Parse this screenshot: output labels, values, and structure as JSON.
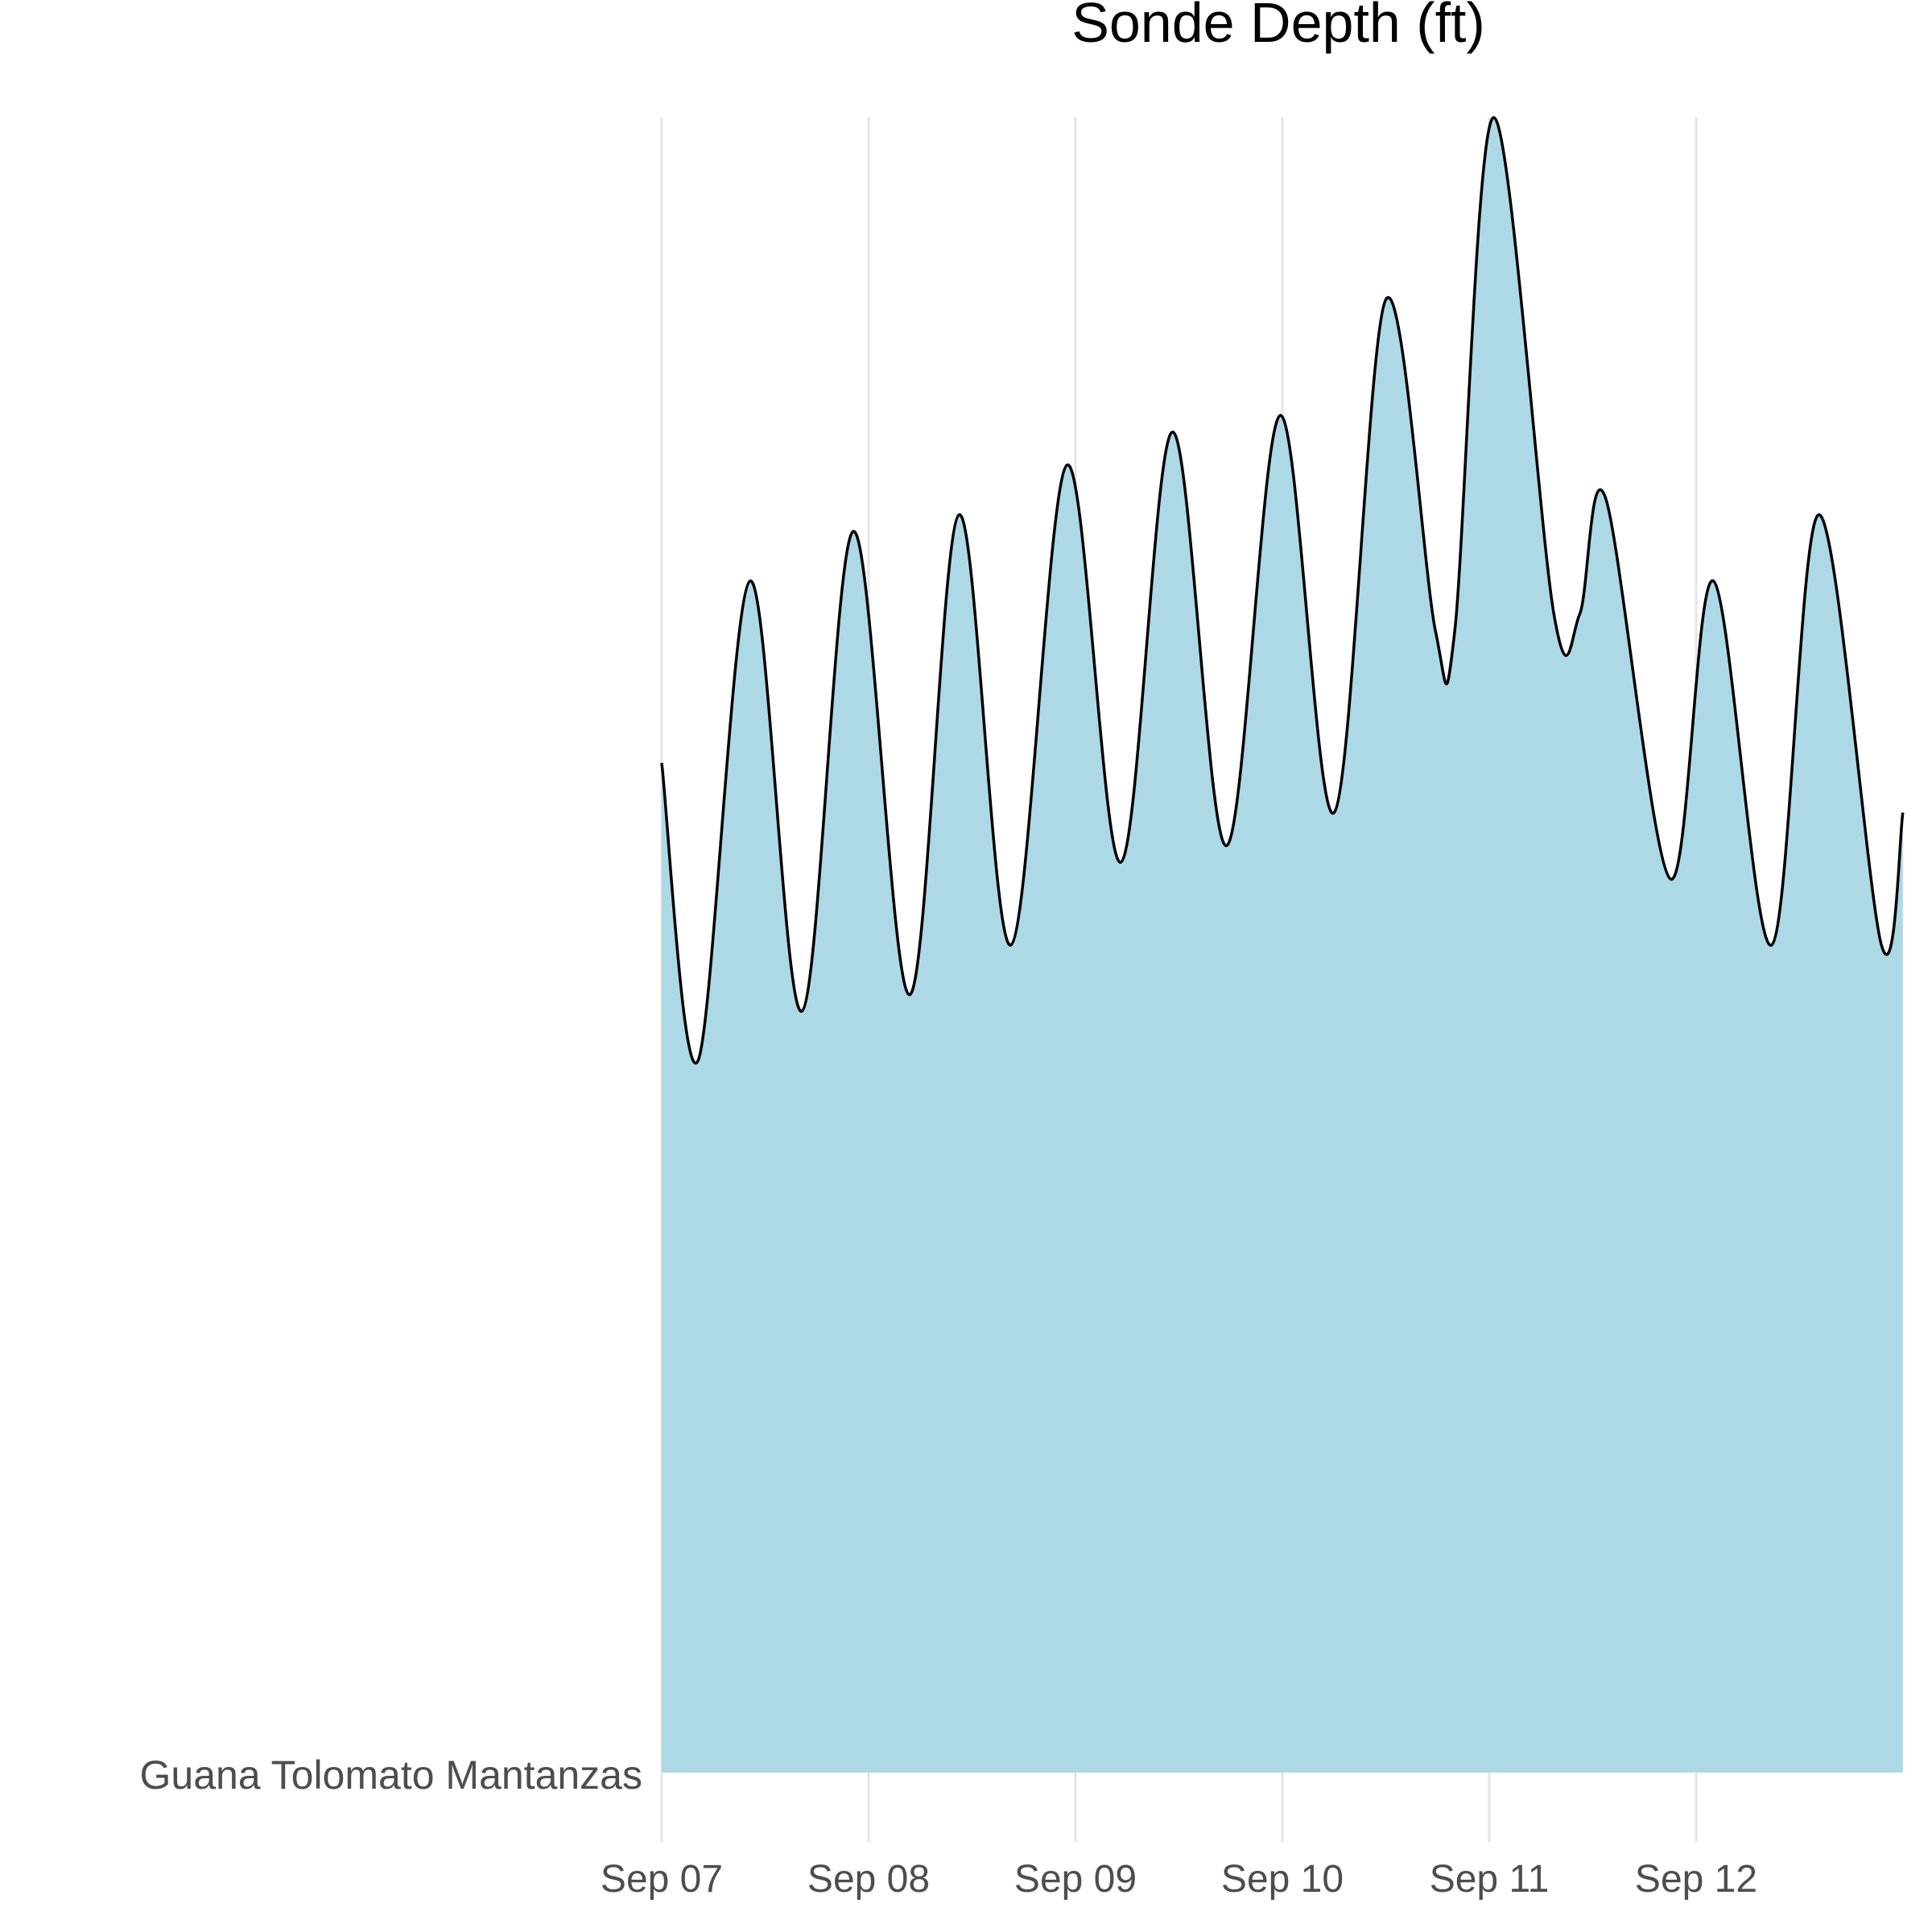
{
  "chart_data": {
    "type": "area",
    "title": "Sonde Depth (ft)",
    "xlabel": "",
    "ylabel": "",
    "category_label": "Guana Tolomato Mantanzas",
    "x_tick_labels": [
      "Sep 07",
      "Sep 08",
      "Sep 09",
      "Sep 10",
      "Sep 11",
      "Sep 12"
    ],
    "x_range": [
      "2021-09-07T00:00",
      "2021-09-12T23:59"
    ],
    "legend": "none",
    "grid": "vertical major lines only",
    "colors": {
      "fill": "#add8e6",
      "line": "#000000",
      "grid": "#e5e5e5"
    },
    "series": [
      {
        "note_values": "relative ridge height above category baseline (0 = baseline, 1 = maximum)",
        "x": [
          "2021-09-07T00:00",
          "2021-09-07T04:12",
          "2021-09-07T10:15",
          "2021-09-07T16:15",
          "2021-09-07T22:15",
          "2021-09-08T04:45",
          "2021-09-08T10:30",
          "2021-09-08T16:30",
          "2021-09-08T23:00",
          "2021-09-09T05:15",
          "2021-09-09T11:15",
          "2021-09-09T17:30",
          "2021-09-09T23:45",
          "2021-09-10T06:00",
          "2021-09-10T12:00",
          "2021-09-10T17:45",
          "2021-09-10T20:00",
          "2021-09-11T00:30",
          "2021-09-11T07:30",
          "2021-09-11T10:30",
          "2021-09-11T13:30",
          "2021-09-11T21:00",
          "2021-09-12T02:00",
          "2021-09-12T08:45",
          "2021-09-12T14:15",
          "2021-09-12T21:30",
          "2021-09-12T23:59"
        ],
        "values": [
          0.61,
          0.43,
          0.72,
          0.46,
          0.75,
          0.47,
          0.76,
          0.5,
          0.79,
          0.55,
          0.81,
          0.56,
          0.82,
          0.58,
          0.89,
          0.69,
          0.69,
          1.0,
          0.7,
          0.7,
          0.77,
          0.54,
          0.72,
          0.5,
          0.76,
          0.5,
          0.58
        ]
      }
    ]
  }
}
